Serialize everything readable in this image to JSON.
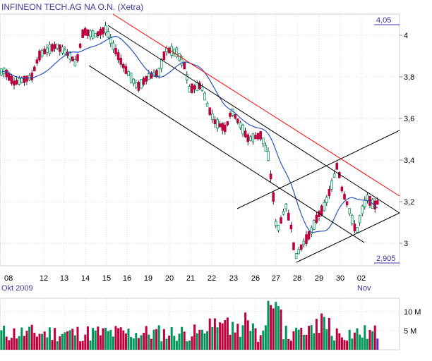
{
  "chart_data": {
    "type": "candlestick",
    "title": "INFINEON TECH.AG NA O.N. (Xetra)",
    "x_tick_labels": [
      "08",
      "12",
      "13",
      "14",
      "15",
      "16",
      "19",
      "20",
      "21",
      "22",
      "23",
      "26",
      "27",
      "28",
      "29",
      "30",
      "02"
    ],
    "month_labels": [
      "Okt 2009",
      "Nov"
    ],
    "y_ticks": [
      3,
      3.2,
      3.4,
      3.6,
      3.8,
      4
    ],
    "y_tick_labels": [
      "3",
      "3,2",
      "3,4",
      "3,6",
      "3,8",
      "4"
    ],
    "ylim": [
      2.9,
      4.1
    ],
    "high_label": "4,05",
    "low_label": "2,905",
    "volume_ticks": [
      "10 M",
      "5 M"
    ],
    "grid": true,
    "colors": {
      "up": "#00965a",
      "down": "#c0003c",
      "moving_average": "#2a52be",
      "resistance_line": "#ff0000",
      "channel_lines": "#000000",
      "grid": "#c8c8c8",
      "label_text": "#3a3aa0",
      "last_volume_bar": "#5a28c8"
    }
  }
}
